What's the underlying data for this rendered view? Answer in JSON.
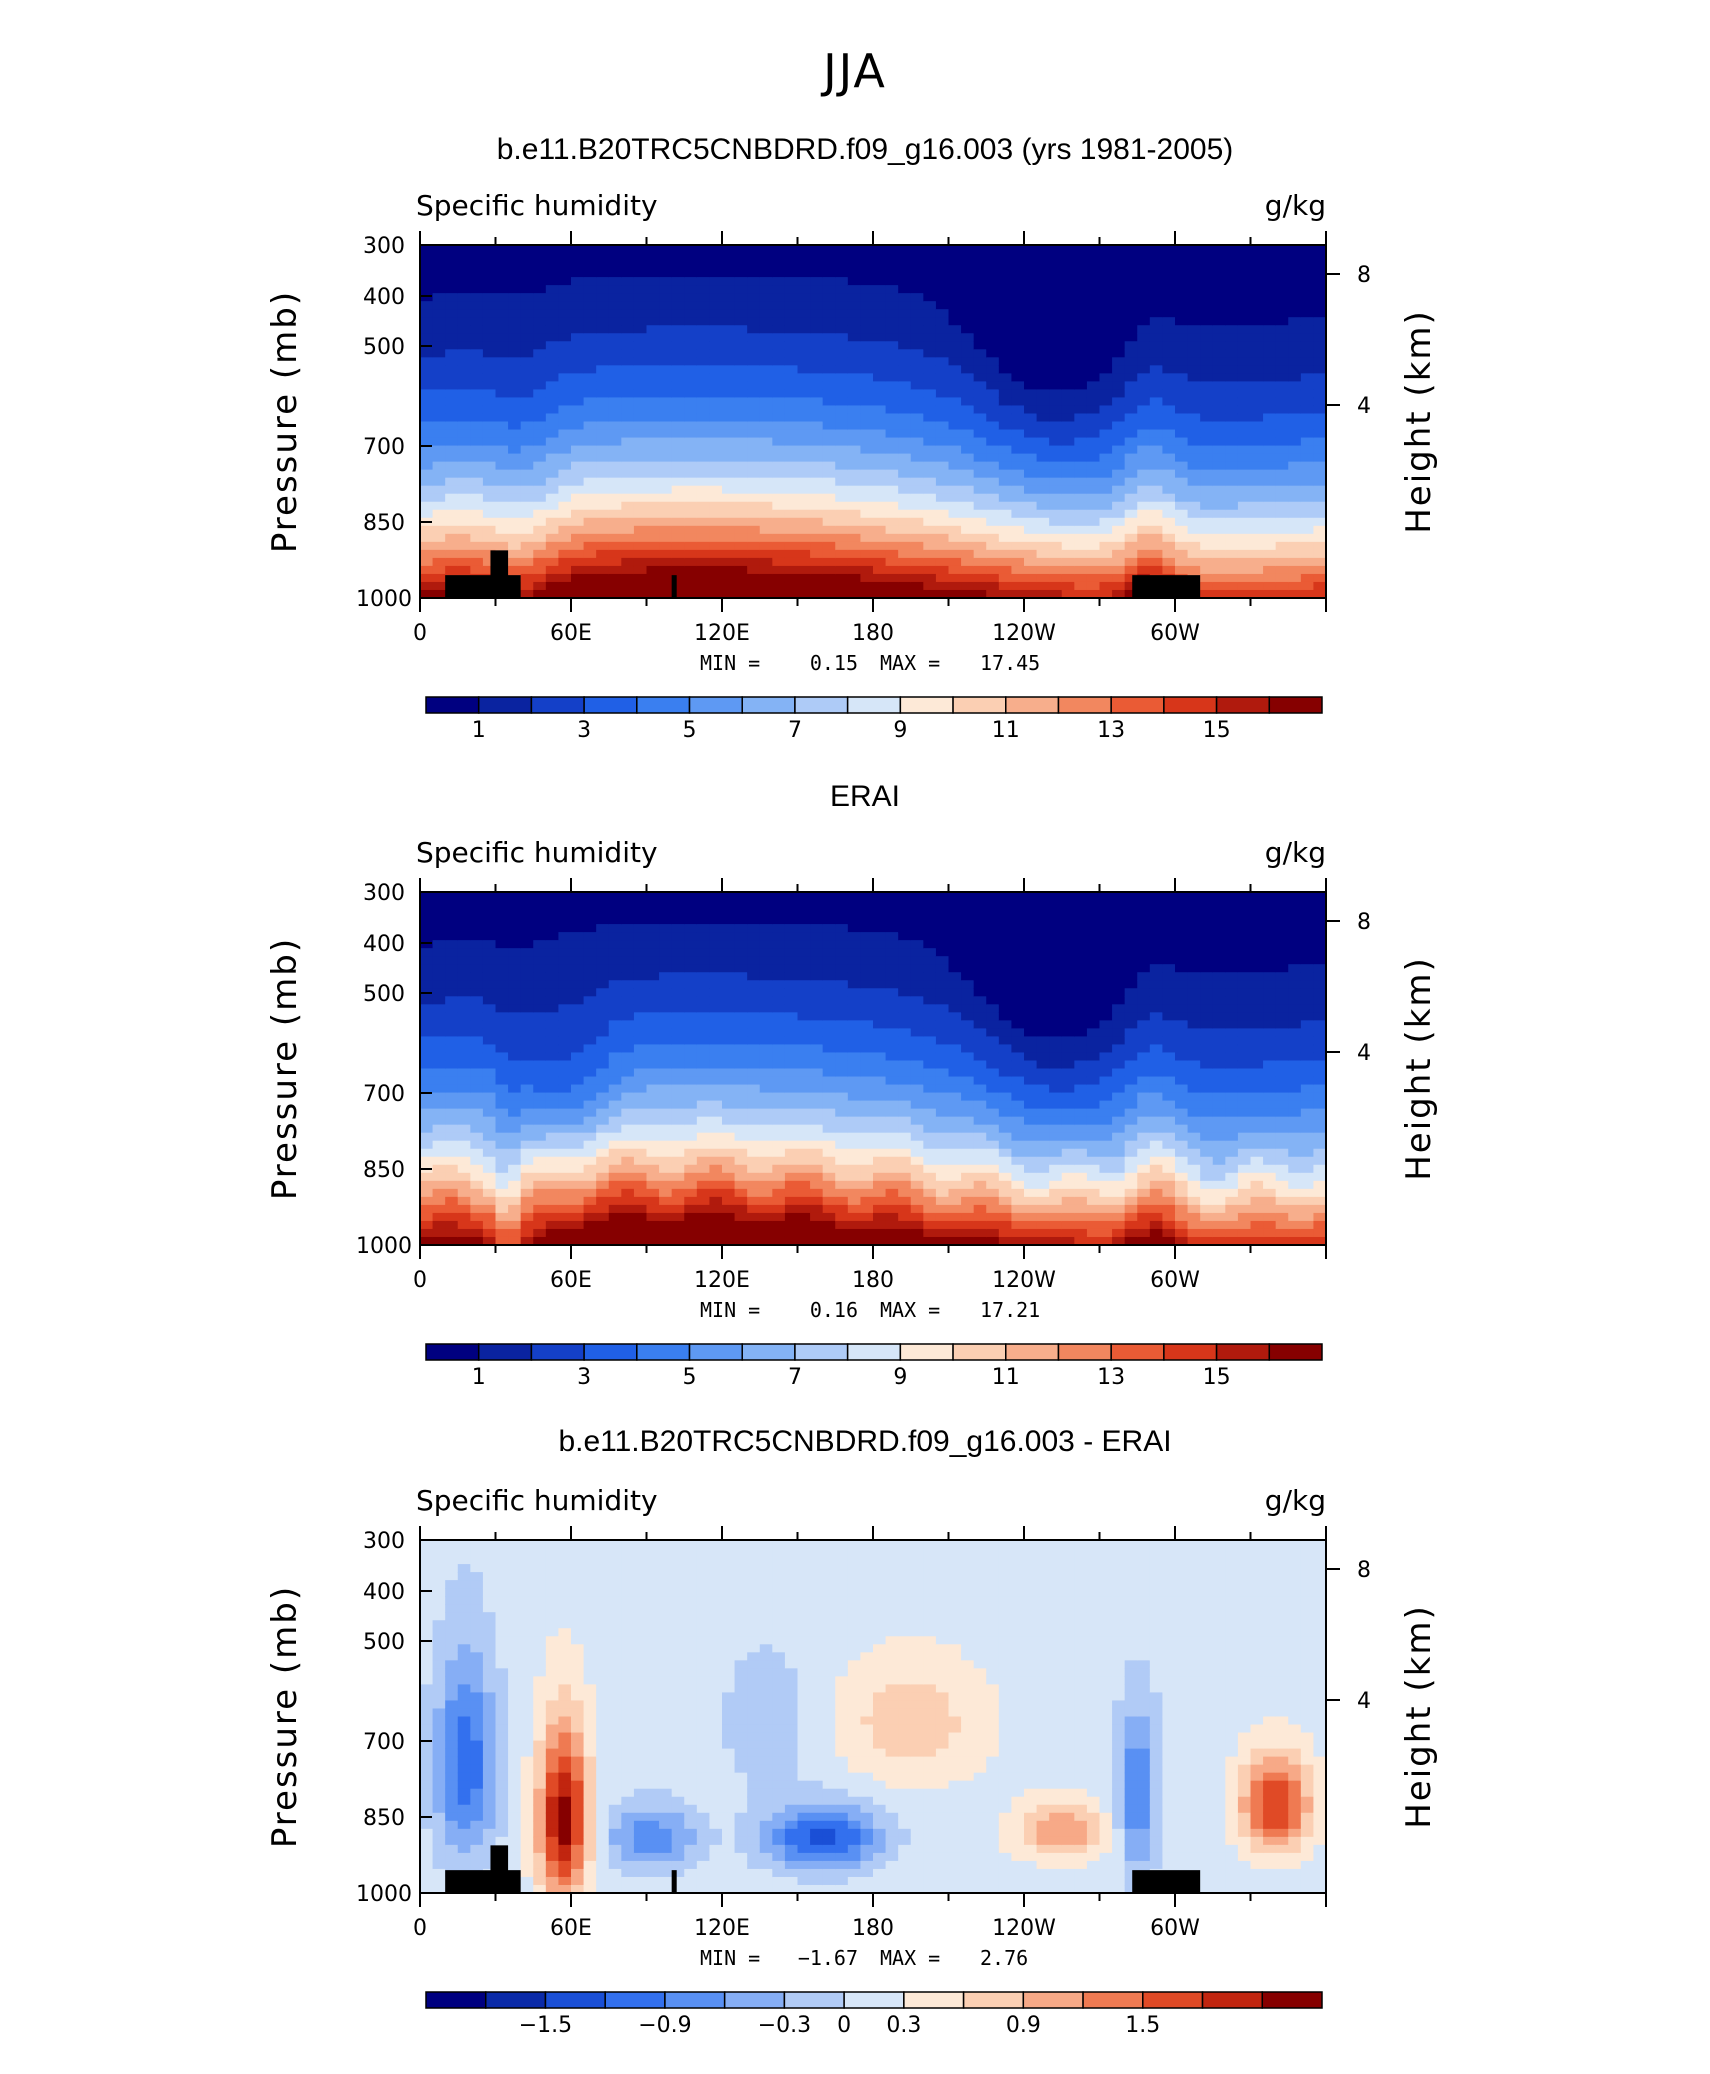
{
  "figure_title": "JJA",
  "colors": {
    "standard": [
      "#000080",
      "#0a23a0",
      "#1440c8",
      "#2060e6",
      "#3a7ff0",
      "#5e99f3",
      "#84b3f5",
      "#aecbf7",
      "#d6e6f8",
      "#fde9d7",
      "#fbcfb3",
      "#f7ae8c",
      "#f2875f",
      "#ea5b35",
      "#d7361a",
      "#b01a0d",
      "#860000"
    ],
    "diff": [
      "#000080",
      "#0a2aa8",
      "#1a4fd6",
      "#3370ee",
      "#5990f3",
      "#86aef5",
      "#b1cbf6",
      "#d7e6f8",
      "#fde9d7",
      "#fbcfb3",
      "#f7a987",
      "#ef7a52",
      "#e04a26",
      "#c1250f",
      "#860000"
    ]
  },
  "chart_data": [
    {
      "type": "heatmap",
      "title": "b.e11.B20TRC5CNBDRD.f09_g16.003 (yrs 1981-2005)",
      "left_label": "Specific humidity",
      "right_label": "g/kg",
      "ylabel": "Pressure (mb)",
      "y2label": "Height (km)",
      "yticks": [
        "300",
        "400",
        "500",
        "700",
        "850",
        "1000"
      ],
      "y2ticks": [
        "8",
        "4"
      ],
      "xticks": [
        "0",
        "60E",
        "120E",
        "180",
        "120W",
        "60W"
      ],
      "ylim": [
        1000,
        300
      ],
      "xlim": [
        0,
        360
      ],
      "stats": {
        "min_label": "MIN =",
        "min": "0.15",
        "max_label": "MAX =",
        "max": "17.45"
      },
      "colorbar_labels": [
        "1",
        "3",
        "5",
        "7",
        "9",
        "11",
        "13",
        "15"
      ],
      "levels_min": 0,
      "levels_max": 16
    },
    {
      "type": "heatmap",
      "title": "ERAI",
      "left_label": "Specific humidity",
      "right_label": "g/kg",
      "ylabel": "Pressure (mb)",
      "y2label": "Height (km)",
      "yticks": [
        "300",
        "400",
        "500",
        "700",
        "850",
        "1000"
      ],
      "y2ticks": [
        "8",
        "4"
      ],
      "xticks": [
        "0",
        "60E",
        "120E",
        "180",
        "120W",
        "60W"
      ],
      "ylim": [
        1000,
        300
      ],
      "xlim": [
        0,
        360
      ],
      "stats": {
        "min_label": "MIN =",
        "min": "0.16",
        "max_label": "MAX =",
        "max": "17.21"
      },
      "colorbar_labels": [
        "1",
        "3",
        "5",
        "7",
        "9",
        "11",
        "13",
        "15"
      ],
      "levels_min": 0,
      "levels_max": 16
    },
    {
      "type": "heatmap",
      "title": "b.e11.B20TRC5CNBDRD.f09_g16.003 - ERAI",
      "left_label": "Specific humidity",
      "right_label": "g/kg",
      "ylabel": "Pressure (mb)",
      "y2label": "Height (km)",
      "yticks": [
        "300",
        "400",
        "500",
        "700",
        "850",
        "1000"
      ],
      "y2ticks": [
        "8",
        "4"
      ],
      "xticks": [
        "0",
        "60E",
        "120E",
        "180",
        "120W",
        "60W"
      ],
      "ylim": [
        1000,
        300
      ],
      "xlim": [
        0,
        360
      ],
      "stats": {
        "min_label": "MIN =",
        "min": "−1.67",
        "max_label": "MAX =",
        "max": "2.76"
      },
      "colorbar_labels": [
        "−1.5",
        "−0.9",
        "−0.3",
        "0",
        "0.3",
        "0.9",
        "1.5"
      ],
      "levels_min": -2.1,
      "levels_max": 2.1
    }
  ]
}
